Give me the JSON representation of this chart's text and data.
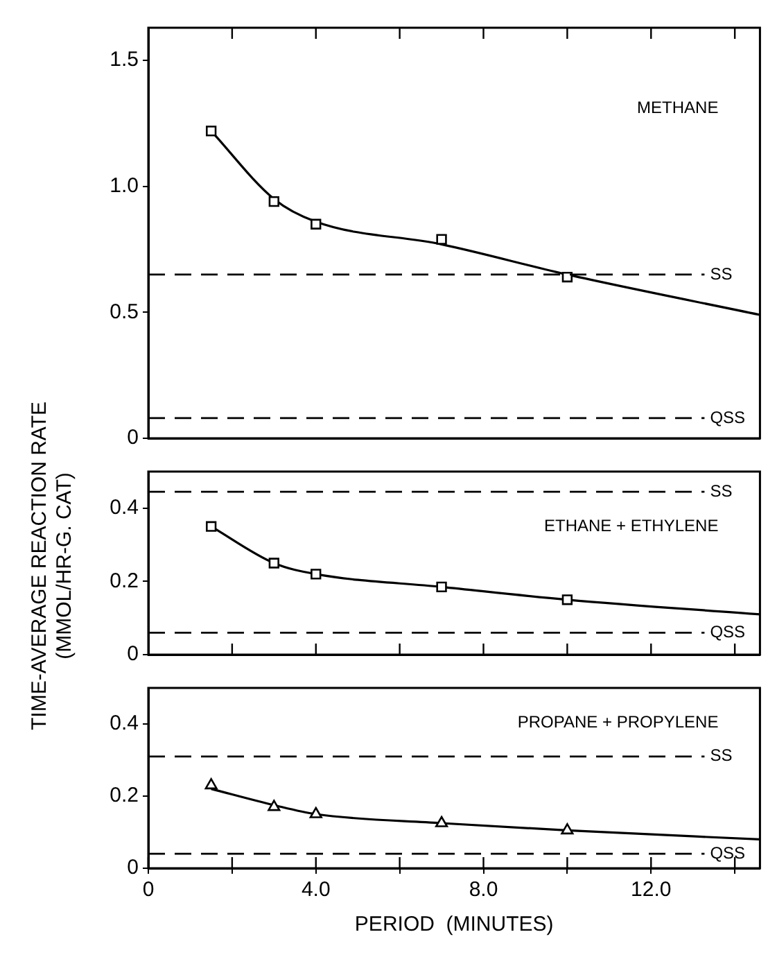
{
  "chart_data": [
    {
      "type": "line",
      "xlim": [
        0,
        14.6
      ],
      "xticks": [
        {
          "value": 2,
          "label": null
        },
        {
          "value": 4,
          "label": null
        },
        {
          "value": 6,
          "label": null
        },
        {
          "value": 8,
          "label": null
        },
        {
          "value": 10,
          "label": null
        },
        {
          "value": 12,
          "label": null
        },
        {
          "value": 14,
          "label": null
        }
      ],
      "ylim": [
        0,
        1.63
      ],
      "yticks": [
        0,
        0.5,
        {
          "value": 1,
          "label": "1.0"
        },
        1.5
      ],
      "tick_labels": "y",
      "annotations": [
        "METHANE"
      ],
      "series": [
        {
          "type": "scatter",
          "marker": "square",
          "color": "#000000",
          "x": [
            1.5,
            3,
            4,
            7,
            10
          ],
          "values": [
            1.22,
            0.94,
            0.85,
            0.79,
            0.64
          ]
        },
        {
          "type": "line",
          "marker": "none",
          "color": "#000000",
          "x": [
            1.5,
            3,
            4,
            7,
            10,
            14.6
          ],
          "values": [
            1.22,
            0.95,
            0.86,
            0.77,
            0.65,
            0.49
          ]
        }
      ],
      "ref_lines": [
        {
          "axis": "y",
          "value": 0.65,
          "label": "SS",
          "line_style": "dashed"
        },
        {
          "axis": "y",
          "value": 0.08,
          "label": "QSS",
          "line_style": "dashed"
        }
      ]
    },
    {
      "type": "line",
      "ylabel": "TIME-AVERAGE REACTION RATE\n(MMOL/HR-G. CAT)",
      "xlim": [
        0,
        14.6
      ],
      "xticks": [
        {
          "value": 2,
          "label": null
        },
        {
          "value": 4,
          "label": null
        },
        {
          "value": 6,
          "label": null
        },
        {
          "value": 8,
          "label": null
        },
        {
          "value": 10,
          "label": null
        },
        {
          "value": 12,
          "label": null
        },
        {
          "value": 14,
          "label": null
        }
      ],
      "ylim": [
        0,
        0.5
      ],
      "yticks": [
        0,
        0.2,
        0.4
      ],
      "tick_labels": "y",
      "annotations": [
        "ETHANE + ETHYLENE"
      ],
      "series": [
        {
          "type": "scatter",
          "marker": "square",
          "color": "#000000",
          "x": [
            1.5,
            3,
            4,
            7,
            10
          ],
          "values": [
            0.35,
            0.25,
            0.22,
            0.185,
            0.15
          ]
        },
        {
          "type": "line",
          "marker": "none",
          "color": "#000000",
          "x": [
            1.5,
            3,
            4,
            7,
            10,
            14.6
          ],
          "values": [
            0.35,
            0.25,
            0.22,
            0.185,
            0.15,
            0.11
          ]
        }
      ],
      "ref_lines": [
        {
          "axis": "y",
          "value": 0.445,
          "label": "SS",
          "line_style": "dashed"
        },
        {
          "axis": "y",
          "value": 0.06,
          "label": "QSS",
          "line_style": "dashed"
        }
      ]
    },
    {
      "type": "line",
      "xlabel": "PERIOD  (MINUTES)",
      "xlim": [
        0,
        14.6
      ],
      "xticks": [
        0,
        {
          "value": 2,
          "label": null
        },
        {
          "value": 4,
          "label": "4.0"
        },
        {
          "value": 6,
          "label": null
        },
        {
          "value": 8,
          "label": "8.0"
        },
        {
          "value": 10,
          "label": null
        },
        {
          "value": 12,
          "label": "12.0"
        },
        {
          "value": 14,
          "label": null
        }
      ],
      "ylim": [
        0,
        0.5
      ],
      "yticks": [
        0,
        0.2,
        0.4
      ],
      "annotations": [
        "PROPANE + PROPYLENE"
      ],
      "series": [
        {
          "type": "scatter",
          "marker": "triangle",
          "color": "#000000",
          "x": [
            1.5,
            3,
            4,
            7,
            10
          ],
          "values": [
            0.23,
            0.17,
            0.15,
            0.125,
            0.105
          ]
        },
        {
          "type": "line",
          "marker": "none",
          "color": "#000000",
          "x": [
            1.5,
            3,
            4,
            7,
            10,
            14.6
          ],
          "values": [
            0.22,
            0.175,
            0.15,
            0.125,
            0.105,
            0.08
          ]
        }
      ],
      "ref_lines": [
        {
          "axis": "y",
          "value": 0.31,
          "label": "SS",
          "line_style": "dashed"
        },
        {
          "axis": "y",
          "value": 0.04,
          "label": "QSS",
          "line_style": "dashed"
        }
      ]
    }
  ]
}
